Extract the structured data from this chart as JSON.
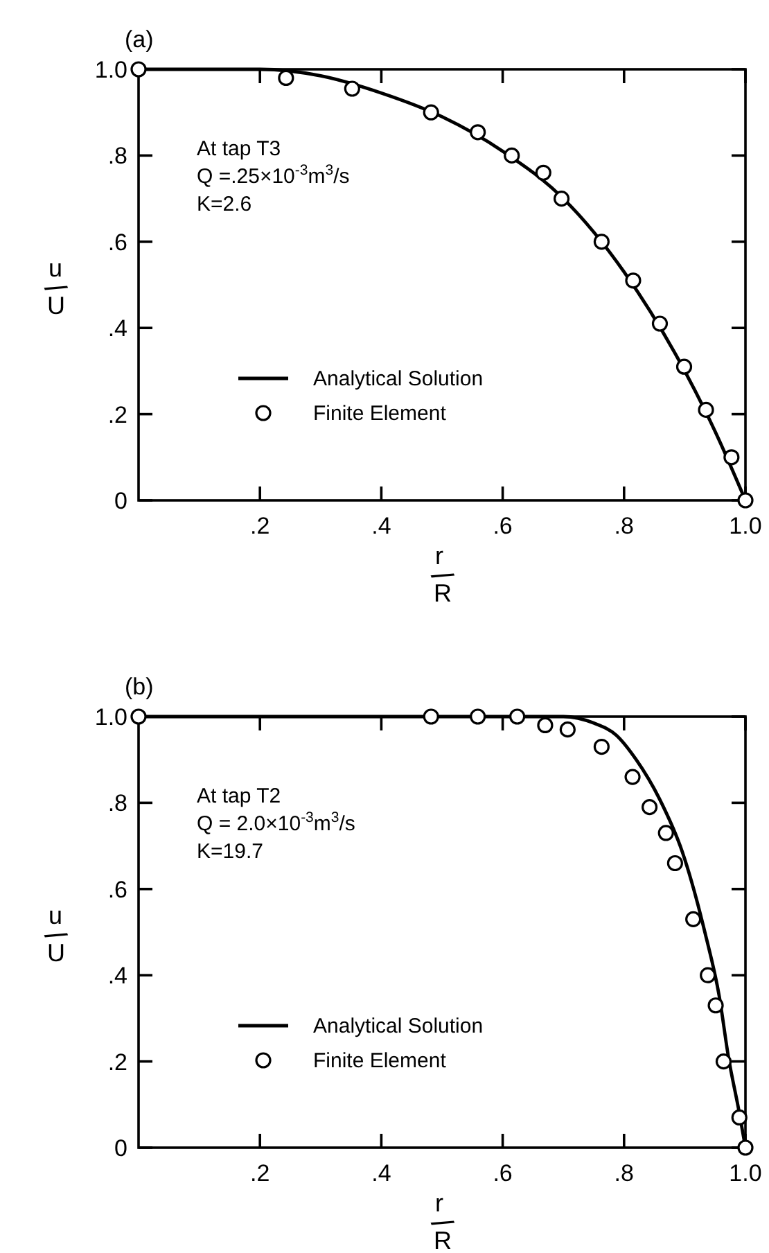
{
  "chart_data": [
    {
      "type": "line",
      "title": "(a)",
      "xlabel": "r/R",
      "ylabel": "u/U",
      "xlim": [
        0,
        1
      ],
      "ylim": [
        0,
        1
      ],
      "xticks": [
        {
          "value": 0.2,
          "label": ".2"
        },
        {
          "value": 0.4,
          "label": ".4"
        },
        {
          "value": 0.6,
          "label": ".6"
        },
        {
          "value": 0.8,
          "label": ".8"
        },
        {
          "value": 1,
          "label": "1.0"
        }
      ],
      "yticks": [
        0,
        {
          "value": 0.2,
          "label": ".2"
        },
        {
          "value": 0.4,
          "label": ".4"
        },
        {
          "value": 0.6,
          "label": ".6"
        },
        {
          "value": 0.8,
          "label": ".8"
        },
        {
          "value": 1,
          "label": "1.0"
        }
      ],
      "annotations": [
        "At tap T3",
        "Q =.25×10$^{-3}$m$^{3}$/s",
        "K=2.6"
      ],
      "legend": "bottom left",
      "grid": false,
      "series": [
        {
          "name": "Analytical Solution",
          "type": "line",
          "color": "#000000",
          "marker": "none",
          "line_style": "solid",
          "x": [
            0,
            0.2,
            0.3,
            0.4,
            0.5,
            0.6,
            0.7,
            0.8,
            0.9,
            0.95,
            1
          ],
          "values": [
            1,
            1,
            0.985,
            0.945,
            0.89,
            0.81,
            0.7,
            0.53,
            0.3,
            0.16,
            0
          ]
        },
        {
          "name": "Finite Element",
          "type": "scatter",
          "color": "#000000",
          "marker": "circle",
          "x": [
            0,
            0.243,
            0.352,
            0.482,
            0.559,
            0.615,
            0.667,
            0.697,
            0.763,
            0.815,
            0.859,
            0.899,
            0.935,
            0.977,
            1
          ],
          "values": [
            1,
            0.98,
            0.955,
            0.9,
            0.854,
            0.8,
            0.76,
            0.7,
            0.6,
            0.51,
            0.41,
            0.31,
            0.21,
            0.1,
            0
          ]
        }
      ]
    },
    {
      "type": "line",
      "title": "(b)",
      "xlabel": "r/R",
      "ylabel": "u/U",
      "xlim": [
        0,
        1
      ],
      "ylim": [
        0,
        1
      ],
      "xticks": [
        {
          "value": 0.2,
          "label": ".2"
        },
        {
          "value": 0.4,
          "label": ".4"
        },
        {
          "value": 0.6,
          "label": ".6"
        },
        {
          "value": 0.8,
          "label": ".8"
        },
        {
          "value": 1,
          "label": "1.0"
        }
      ],
      "yticks": [
        0,
        {
          "value": 0.2,
          "label": ".2"
        },
        {
          "value": 0.4,
          "label": ".4"
        },
        {
          "value": 0.6,
          "label": ".6"
        },
        {
          "value": 0.8,
          "label": ".8"
        },
        {
          "value": 1,
          "label": "1.0"
        }
      ],
      "annotations": [
        "At tap T2",
        "Q = 2.0×10$^{-3}$m$^{3}$/s",
        "K=19.7"
      ],
      "legend": "bottom left",
      "grid": false,
      "series": [
        {
          "name": "Analytical Solution",
          "type": "line",
          "color": "#000000",
          "marker": "none",
          "line_style": "solid",
          "x": [
            0,
            0.7,
            0.75,
            0.787,
            0.82,
            0.858,
            0.896,
            0.934,
            0.957,
            0.972,
            0.99,
            1
          ],
          "values": [
            1,
            1,
            0.985,
            0.957,
            0.9,
            0.81,
            0.686,
            0.495,
            0.35,
            0.21,
            0.08,
            0
          ]
        },
        {
          "name": "Finite Element",
          "type": "scatter",
          "color": "#000000",
          "marker": "circle",
          "x": [
            0,
            0.482,
            0.559,
            0.624,
            0.67,
            0.707,
            0.763,
            0.814,
            0.842,
            0.869,
            0.884,
            0.914,
            0.938,
            0.951,
            0.964,
            0.99,
            1
          ],
          "values": [
            1,
            1,
            1,
            1,
            0.98,
            0.97,
            0.93,
            0.86,
            0.79,
            0.73,
            0.66,
            0.53,
            0.4,
            0.33,
            0.2,
            0.07,
            0
          ]
        }
      ]
    }
  ]
}
